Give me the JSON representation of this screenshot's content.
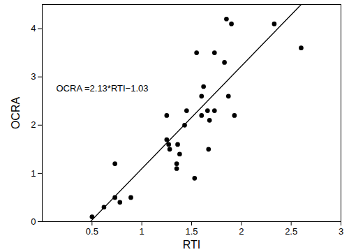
{
  "chart_data": {
    "type": "scatter",
    "x_label": "RTI",
    "y_label": "OCRA",
    "annotation": "OCRA =2.13*RTI−1.03",
    "xlim": [
      0,
      3
    ],
    "xticks": [
      0.5,
      1,
      1.5,
      2,
      2.5,
      3
    ],
    "ylim": [
      0,
      4.5
    ],
    "yticks": [
      0,
      1,
      2,
      3,
      4
    ],
    "grid": false,
    "series": [
      {
        "type": "scatter",
        "marker": "circle",
        "color": "#000000",
        "x": [
          0.5,
          0.62,
          0.73,
          0.73,
          0.78,
          0.89,
          1.25,
          1.25,
          1.27,
          1.28,
          1.35,
          1.35,
          1.36,
          1.38,
          1.43,
          1.45,
          1.53,
          1.55,
          1.6,
          1.6,
          1.62,
          1.66,
          1.67,
          1.68,
          1.73,
          1.73,
          1.83,
          1.85,
          1.87,
          1.9,
          1.93,
          2.33,
          2.6
        ],
        "values": [
          0.1,
          0.3,
          0.5,
          1.2,
          0.4,
          0.5,
          2.2,
          1.7,
          1.6,
          1.5,
          1.2,
          1.1,
          1.6,
          1.4,
          2.0,
          2.3,
          0.9,
          3.5,
          2.6,
          2.2,
          2.8,
          2.3,
          1.5,
          2.1,
          3.5,
          2.3,
          3.3,
          4.2,
          2.6,
          4.1,
          2.2,
          4.1,
          3.6
        ]
      },
      {
        "type": "line",
        "line_style": "solid",
        "color": "#000000",
        "x": [
          0.484,
          2.6
        ],
        "values": [
          0,
          4.5
        ]
      }
    ]
  }
}
